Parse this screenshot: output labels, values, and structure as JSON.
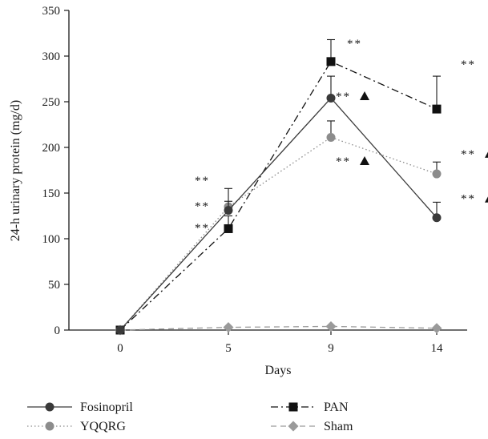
{
  "chart_data": {
    "type": "line",
    "title": "",
    "xlabel": "Days",
    "ylabel": "24-h urinary protein (mg/d)",
    "x": [
      0,
      5,
      9,
      14
    ],
    "x_tick_labels": [
      "0",
      "5",
      "9",
      "14"
    ],
    "ylim": [
      0,
      350
    ],
    "y_ticks": [
      0,
      50,
      100,
      150,
      200,
      250,
      300,
      350
    ],
    "grid": false,
    "legend_position": "bottom",
    "series": [
      {
        "name": "Fosinopril",
        "values": [
          0,
          131,
          254,
          123
        ],
        "error": [
          0,
          10,
          24,
          17
        ],
        "color": "#3a3a3a",
        "marker": "circle",
        "line": "solid"
      },
      {
        "name": "PAN",
        "values": [
          0,
          111,
          294,
          242
        ],
        "error": [
          0,
          14,
          24,
          36
        ],
        "color": "#111111",
        "marker": "square",
        "line": "dashdot"
      },
      {
        "name": "YQQRG",
        "values": [
          0,
          135,
          211,
          171
        ],
        "error": [
          0,
          20,
          18,
          13
        ],
        "color": "#8c8c8c",
        "marker": "circle",
        "line": "dotted"
      },
      {
        "name": "Sham",
        "values": [
          0,
          3,
          4,
          2
        ],
        "error": [
          0,
          0,
          0,
          0
        ],
        "color": "#9a9a9a",
        "marker": "diamond",
        "line": "dashed"
      }
    ],
    "annotations": [
      {
        "text": "**",
        "x": 5,
        "y": 165,
        "triangle": false
      },
      {
        "text": "**",
        "x": 5,
        "y": 137,
        "triangle": false
      },
      {
        "text": "**",
        "x": 5,
        "y": 113,
        "triangle": false
      },
      {
        "text": "**",
        "x": 9,
        "y": 315,
        "triangle": false
      },
      {
        "text": "**",
        "x": 9,
        "y": 257,
        "triangle": true
      },
      {
        "text": "**",
        "x": 9,
        "y": 186,
        "triangle": true
      },
      {
        "text": "**",
        "x": 14,
        "y": 292,
        "triangle": false
      },
      {
        "text": "**",
        "x": 14,
        "y": 194,
        "triangle": true
      },
      {
        "text": "**",
        "x": 14,
        "y": 145,
        "triangle": true
      }
    ]
  }
}
